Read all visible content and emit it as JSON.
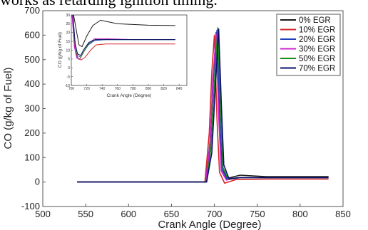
{
  "caption": "works as retarding ignition timing.",
  "chart_data": {
    "type": "line",
    "xlabel": "Crank Angle (Degree)",
    "ylabel": "CO (g/kg of Fuel)",
    "xlim": [
      500,
      850
    ],
    "ylim": [
      -100,
      700
    ],
    "xticks": [
      500,
      550,
      600,
      650,
      700,
      750,
      800,
      850
    ],
    "yticks": [
      -100,
      0,
      100,
      200,
      300,
      400,
      500,
      600,
      700
    ],
    "legend_position": "top-right",
    "series": [
      {
        "name": "0% EGR",
        "color": "#1a1a1a",
        "x": [
          540,
          690,
          695,
          698,
          702,
          705,
          708,
          715,
          730,
          760,
          833
        ],
        "y": [
          0,
          0,
          150,
          380,
          610,
          300,
          60,
          15,
          28,
          22,
          22
        ]
      },
      {
        "name": "10% EGR",
        "color": "#d62728",
        "x": [
          540,
          689,
          694,
          697,
          700,
          703,
          706,
          712,
          725,
          760,
          833
        ],
        "y": [
          0,
          0,
          200,
          450,
          600,
          260,
          40,
          -5,
          10,
          12,
          12
        ]
      },
      {
        "name": "20% EGR",
        "color": "#1f3fbf",
        "x": [
          540,
          690,
          695,
          699,
          703,
          706,
          709,
          715,
          730,
          760,
          833
        ],
        "y": [
          0,
          0,
          170,
          430,
          620,
          280,
          50,
          10,
          18,
          18,
          18
        ]
      },
      {
        "name": "30% EGR",
        "color": "#d020d0",
        "x": [
          540,
          690,
          695,
          698,
          702,
          705,
          708,
          714,
          730,
          760,
          833
        ],
        "y": [
          0,
          0,
          160,
          410,
          605,
          270,
          45,
          8,
          18,
          18,
          18
        ]
      },
      {
        "name": "50% EGR",
        "color": "#1a8a1a",
        "x": [
          540,
          691,
          696,
          700,
          704,
          707,
          710,
          716,
          730,
          760,
          833
        ],
        "y": [
          0,
          0,
          140,
          400,
          630,
          310,
          60,
          12,
          18,
          18,
          18
        ]
      },
      {
        "name": "70% EGR",
        "color": "#0d0d6b",
        "x": [
          540,
          691,
          697,
          701,
          705,
          708,
          711,
          717,
          730,
          760,
          833
        ],
        "y": [
          0,
          0,
          120,
          380,
          625,
          330,
          70,
          14,
          18,
          18,
          18
        ]
      }
    ],
    "inset": {
      "xlabel": "Crank Angle (Degree)",
      "ylabel": "CO (g/kg of Fuel)",
      "xlim": [
        700,
        850
      ],
      "ylim": [
        -10,
        30
      ],
      "xticks": [
        700,
        720,
        740,
        760,
        780,
        800,
        820,
        840
      ],
      "yticks": [
        -10,
        -5,
        0,
        5,
        10,
        15,
        20,
        25,
        30
      ],
      "series": [
        {
          "name": "0% EGR",
          "x": [
            703,
            707,
            710,
            714,
            720,
            728,
            738,
            760,
            800,
            835
          ],
          "y": [
            30,
            20,
            13,
            12,
            18,
            24,
            27,
            25,
            24.2,
            24
          ]
        },
        {
          "name": "10% EGR",
          "x": [
            701,
            705,
            709,
            713,
            718,
            725,
            732,
            745,
            780,
            835
          ],
          "y": [
            30,
            10,
            5,
            4.5,
            6,
            10,
            13,
            13.5,
            13.5,
            13.5
          ]
        },
        {
          "name": "20% EGR",
          "x": [
            701,
            704,
            707,
            711,
            716,
            722,
            730,
            745,
            780,
            835
          ],
          "y": [
            30,
            12,
            6,
            5,
            9,
            13,
            15.5,
            16,
            16,
            16
          ]
        },
        {
          "name": "30% EGR",
          "x": [
            701,
            704,
            707,
            711,
            716,
            722,
            730,
            745,
            780,
            835
          ],
          "y": [
            30,
            12,
            5.5,
            5,
            9,
            13.5,
            16.5,
            16.5,
            16,
            16
          ]
        },
        {
          "name": "50% EGR",
          "x": [
            702,
            705,
            708,
            712,
            717,
            723,
            731,
            745,
            780,
            835
          ],
          "y": [
            30,
            13,
            7,
            6,
            10,
            14,
            16,
            16,
            16,
            16
          ]
        },
        {
          "name": "70% EGR",
          "x": [
            702,
            705,
            708,
            712,
            717,
            723,
            731,
            745,
            780,
            835
          ],
          "y": [
            30,
            14,
            8,
            7,
            11,
            14.5,
            16,
            16,
            16,
            16
          ]
        }
      ]
    }
  }
}
